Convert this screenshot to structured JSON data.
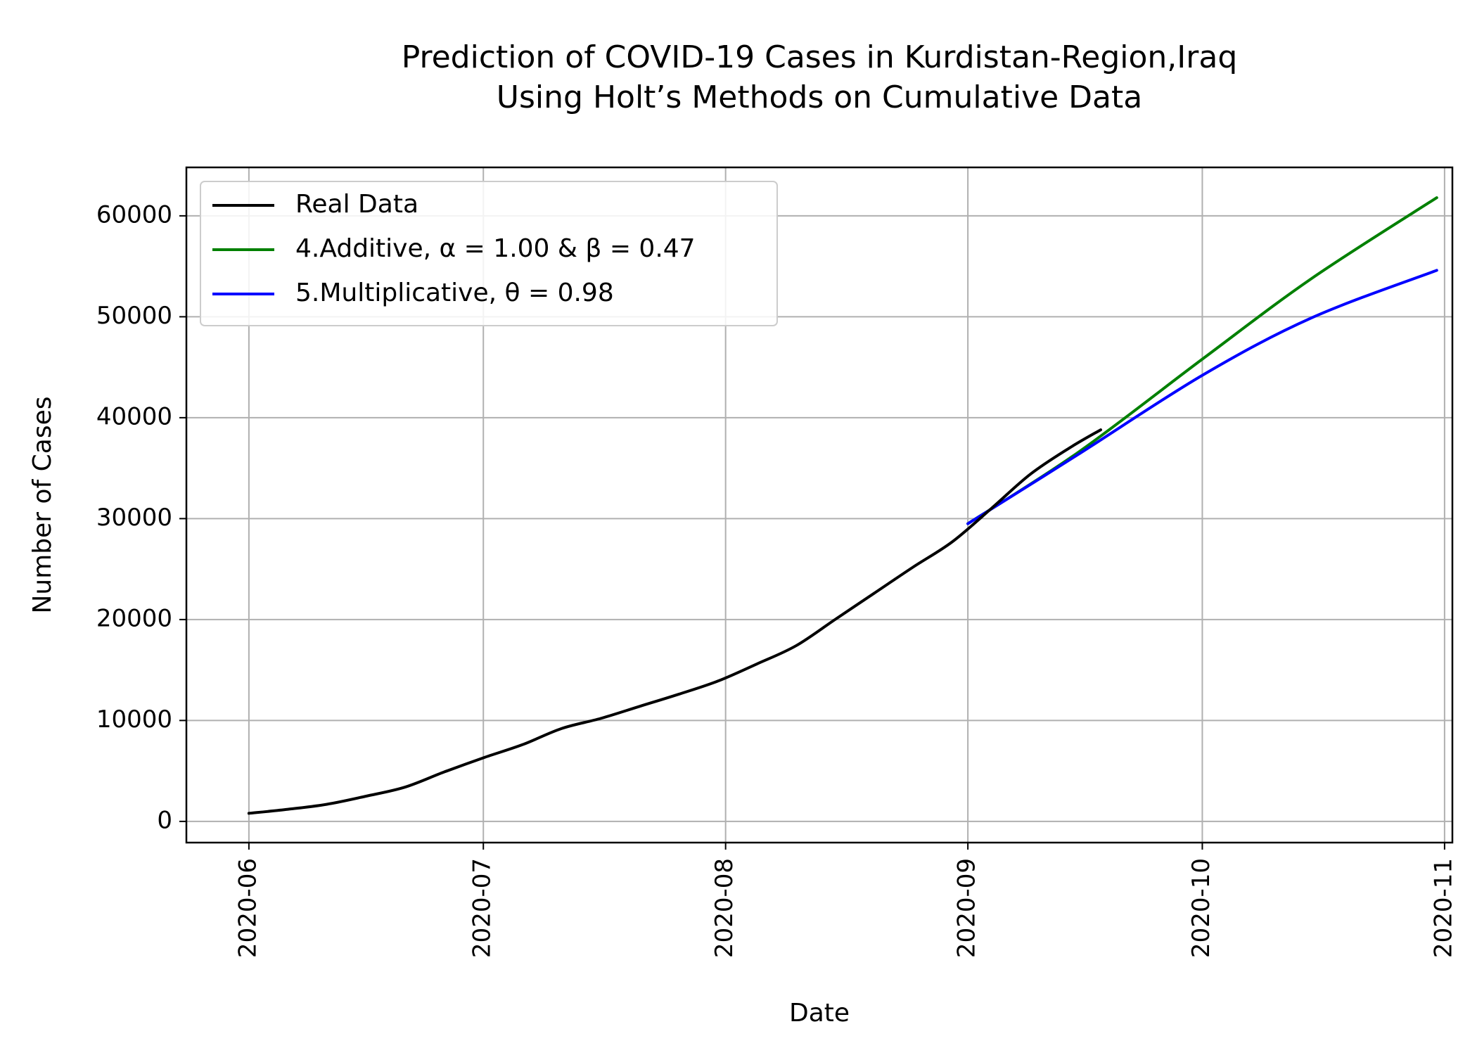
{
  "chart_data": {
    "type": "line",
    "title": "Prediction of COVID-19 Cases in Kurdistan-Region,Iraq",
    "subtitle": "Using Holt’s Methods on Cumulative Data",
    "xlabel": "Date",
    "ylabel": "Number of Cases",
    "x_scale": "date",
    "xlim": [
      "2020-05-24",
      "2020-11-02"
    ],
    "ylim": [
      -2100,
      64800
    ],
    "x_ticks": [
      "2020-06",
      "2020-07",
      "2020-08",
      "2020-09",
      "2020-10",
      "2020-11"
    ],
    "x_tick_dates": [
      "2020-06-01",
      "2020-07-01",
      "2020-08-01",
      "2020-09-01",
      "2020-10-01",
      "2020-11-01"
    ],
    "y_ticks": [
      0,
      10000,
      20000,
      30000,
      40000,
      50000,
      60000
    ],
    "grid": true,
    "legend": "top-left",
    "series": [
      {
        "name": "Real Data",
        "color": "#000000",
        "x": [
          "2020-06-01",
          "2020-06-06",
          "2020-06-11",
          "2020-06-16",
          "2020-06-21",
          "2020-06-26",
          "2020-07-01",
          "2020-07-06",
          "2020-07-11",
          "2020-07-16",
          "2020-07-21",
          "2020-07-26",
          "2020-07-31",
          "2020-08-05",
          "2020-08-10",
          "2020-08-15",
          "2020-08-20",
          "2020-08-25",
          "2020-08-30",
          "2020-09-04",
          "2020-09-09",
          "2020-09-14",
          "2020-09-18"
        ],
        "y": [
          800,
          1200,
          1700,
          2500,
          3400,
          4900,
          6300,
          7600,
          9200,
          10200,
          11400,
          12600,
          13900,
          15600,
          17400,
          20000,
          22600,
          25200,
          27700,
          31000,
          34400,
          37000,
          38800
        ]
      },
      {
        "name": "4.Additive, α = 1.00  &  β = 0.47",
        "color": "#008000",
        "x": [
          "2020-09-01",
          "2020-09-15",
          "2020-10-01",
          "2020-10-15",
          "2020-10-31"
        ],
        "y": [
          29500,
          36500,
          45800,
          53800,
          61800
        ]
      },
      {
        "name": "5.Multiplicative, θ = 0.98",
        "color": "#0000ff",
        "x": [
          "2020-09-01",
          "2020-09-15",
          "2020-10-01",
          "2020-10-15",
          "2020-10-31"
        ],
        "y": [
          29500,
          36300,
          44200,
          49900,
          54600
        ]
      }
    ]
  }
}
